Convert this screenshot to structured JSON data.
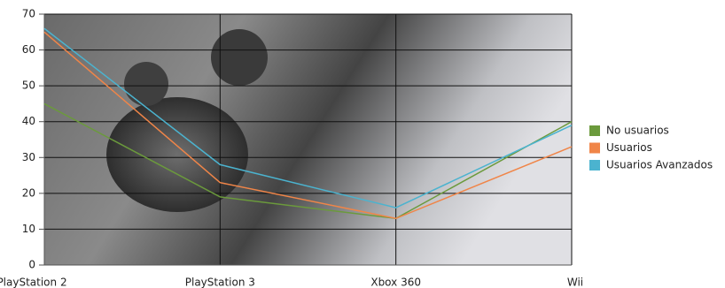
{
  "chart_data": {
    "type": "line",
    "categories": [
      "PlayStation 2",
      "PlayStation 3",
      "Xbox 360",
      "Wii"
    ],
    "series": [
      {
        "name": "No usuarios",
        "color": "#6b9a3c",
        "values": [
          45,
          19,
          13,
          40
        ]
      },
      {
        "name": "Usuarios",
        "color": "#f08548",
        "values": [
          65,
          23,
          13,
          33
        ]
      },
      {
        "name": "Usuarios Avanzados",
        "color": "#4bb3cf",
        "values": [
          66,
          28,
          16,
          39
        ]
      }
    ],
    "ylim": [
      0,
      70
    ],
    "yticks": [
      0,
      10,
      20,
      30,
      40,
      50,
      60,
      70
    ],
    "grid": true,
    "legend": "right"
  }
}
